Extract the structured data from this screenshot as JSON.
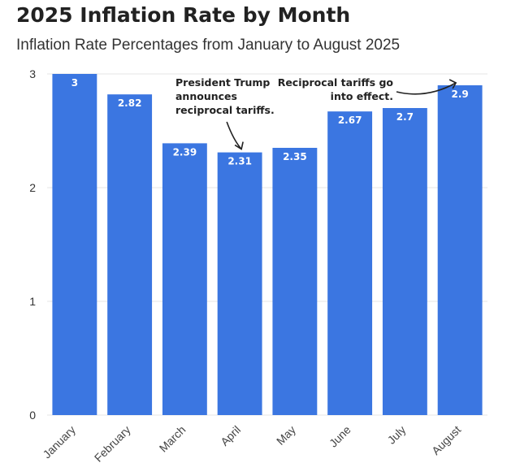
{
  "chart_data": {
    "type": "bar",
    "title": "2025 Inflation Rate by Month",
    "subtitle": "Inflation Rate Percentages from January to August 2025",
    "categories": [
      "January",
      "February",
      "March",
      "April",
      "May",
      "June",
      "July",
      "August"
    ],
    "values": [
      3,
      2.82,
      2.39,
      2.31,
      2.35,
      2.67,
      2.7,
      2.9
    ],
    "data_labels": [
      "3",
      "2.82",
      "2.39",
      "2.31",
      "2.35",
      "2.67",
      "2.7",
      "2.9"
    ],
    "y_ticks": [
      "0",
      "1",
      "2",
      "3"
    ],
    "ylim": [
      0,
      3
    ],
    "xlabel": "",
    "ylabel": "",
    "grid": true,
    "legend": "none",
    "bar_color": "#3b76e1",
    "annotations": [
      {
        "category": "April",
        "lines": [
          "President Trump",
          "announces",
          "reciprocal tariffs."
        ]
      },
      {
        "category": "August",
        "lines": [
          "Reciprocal tariffs go",
          "into effect."
        ]
      }
    ]
  }
}
